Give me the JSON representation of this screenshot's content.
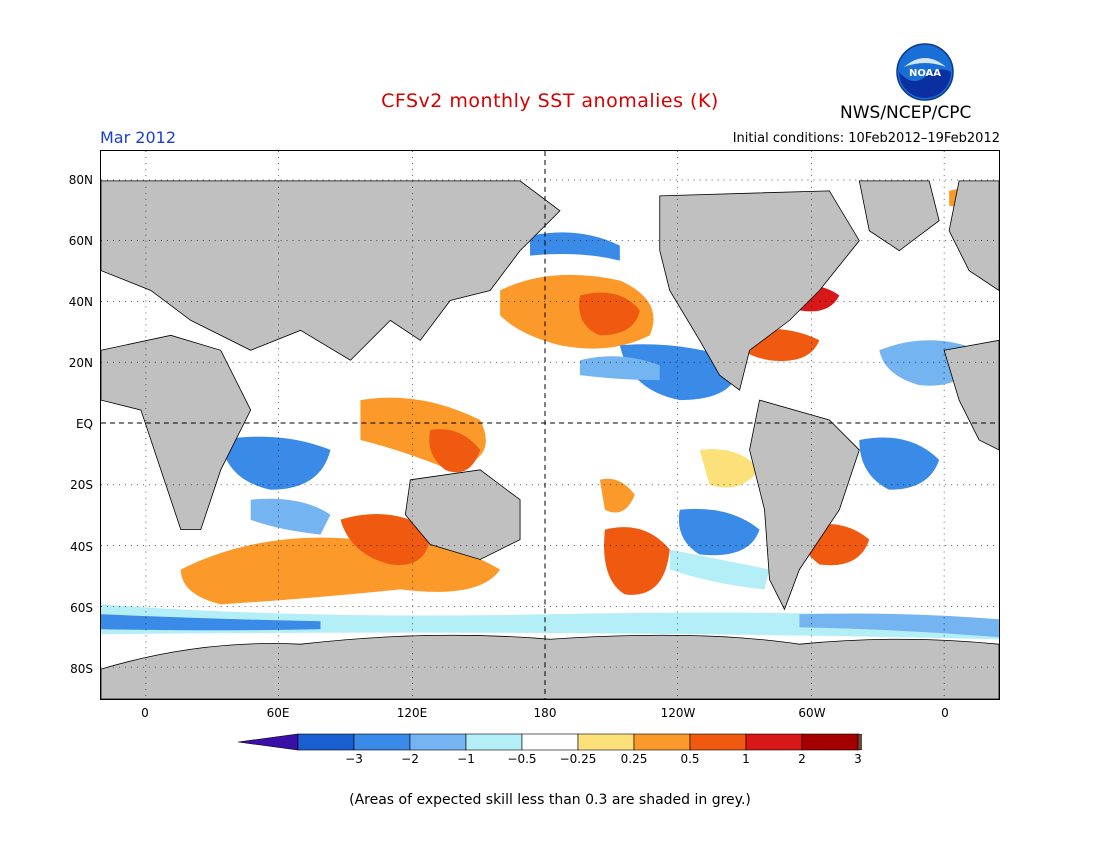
{
  "title": "CFSv2 monthly SST anomalies (K)",
  "agency": "NWS/NCEP/CPC",
  "logo_text": "NOAA",
  "valid_month": "Mar 2012",
  "initial_conditions": "Initial conditions: 10Feb2012–19Feb2012",
  "lat_labels": [
    "80N",
    "60N",
    "40N",
    "20N",
    "EQ",
    "20S",
    "40S",
    "60S",
    "80S"
  ],
  "lon_labels": [
    "0",
    "60E",
    "120E",
    "180",
    "120W",
    "60W",
    "0"
  ],
  "colorbar": {
    "labels": [
      "−3",
      "−2",
      "−1",
      "−0.5",
      "−0.25",
      "0.25",
      "0.5",
      "1",
      "2",
      "3"
    ],
    "colors": [
      "#3a0fa8",
      "#1a5fd0",
      "#3a8ae8",
      "#74b4f0",
      "#b4eef6",
      "#ffffff",
      "#fce07a",
      "#fb9a2a",
      "#f05a10",
      "#d81818",
      "#a50000",
      "#6e4a3a"
    ]
  },
  "footnote": "(Areas of expected skill less than 0.3 are shaded in grey.)"
}
